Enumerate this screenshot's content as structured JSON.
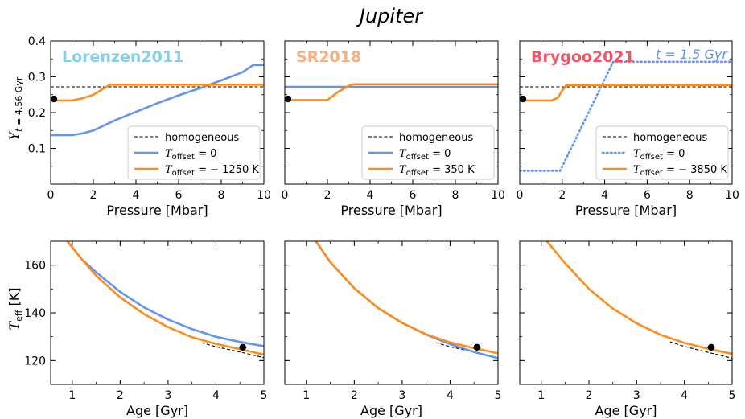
{
  "figure_title": "Jupiter",
  "colors": {
    "blue": "#6495ED",
    "orange": "#FF8C1A",
    "black": "#000000",
    "lorenzen": "#87CEEB",
    "sr": "#F4B183",
    "brygoo": "#F0566A"
  },
  "chart_data": [
    {
      "id": "p1",
      "type": "line",
      "label": "Lorenzen2011",
      "label_color": "#87CEEB",
      "xlabel": "Pressure [Mbar]",
      "ylabel": "Y_t=4.56 Gyr",
      "xlim": [
        0,
        10
      ],
      "ylim": [
        0.0,
        0.4
      ],
      "xticks": [
        0,
        2,
        4,
        6,
        8,
        10
      ],
      "yticks": [
        0.1,
        0.2,
        0.3,
        0.4
      ],
      "xtick_labels": [
        "0",
        "2",
        "4",
        "6",
        "8",
        "10"
      ],
      "ytick_labels": [
        "0.1",
        "0.2",
        "0.3",
        "0.4"
      ],
      "legend": {
        "position": "lower-right",
        "entries": [
          {
            "label": "homogeneous",
            "style": "dashed-black"
          },
          {
            "label": "T_offset = 0",
            "style": "solid-blue"
          },
          {
            "label": "T_offset = − 1250 K",
            "style": "solid-orange"
          }
        ]
      },
      "series": [
        {
          "name": "homogeneous",
          "style": "dashed-black",
          "x": [
            0,
            10
          ],
          "y": [
            0.272,
            0.272
          ]
        },
        {
          "name": "T_offset = 0",
          "style": "solid-blue",
          "x": [
            0,
            1,
            1.5,
            2,
            3,
            4,
            5,
            6,
            7,
            8,
            9,
            9.5,
            10
          ],
          "y": [
            0.137,
            0.137,
            0.142,
            0.15,
            0.178,
            0.202,
            0.226,
            0.248,
            0.268,
            0.29,
            0.313,
            0.333,
            0.333
          ]
        },
        {
          "name": "T_offset = -1250 K",
          "style": "solid-orange",
          "x": [
            0,
            1,
            1.5,
            2,
            2.5,
            2.8,
            3,
            10
          ],
          "y": [
            0.234,
            0.234,
            0.24,
            0.25,
            0.268,
            0.278,
            0.278,
            0.278
          ]
        },
        {
          "name": "observation",
          "style": "point",
          "x": [
            0.15
          ],
          "y": [
            0.238
          ]
        }
      ]
    },
    {
      "id": "p2",
      "type": "line",
      "label": "SR2018",
      "label_color": "#F4B183",
      "xlabel": "Pressure [Mbar]",
      "ylabel": "",
      "xlim": [
        0,
        10
      ],
      "ylim": [
        0.0,
        0.4
      ],
      "xticks": [
        0,
        2,
        4,
        6,
        8,
        10
      ],
      "yticks": [
        0.1,
        0.2,
        0.3,
        0.4
      ],
      "xtick_labels": [
        "0",
        "2",
        "4",
        "6",
        "8",
        "10"
      ],
      "ytick_labels": [],
      "legend": {
        "position": "lower-right",
        "entries": [
          {
            "label": "homogeneous",
            "style": "dashed-black"
          },
          {
            "label": "T_offset = 0",
            "style": "solid-blue"
          },
          {
            "label": "T_offset = 350 K",
            "style": "solid-orange"
          }
        ]
      },
      "series": [
        {
          "name": "homogeneous",
          "style": "dashed-black",
          "x": [
            0,
            10
          ],
          "y": [
            0.272,
            0.272
          ]
        },
        {
          "name": "T_offset = 0",
          "style": "solid-blue",
          "x": [
            0,
            10
          ],
          "y": [
            0.272,
            0.272
          ]
        },
        {
          "name": "T_offset = 350 K",
          "style": "solid-orange",
          "x": [
            0,
            2,
            2.5,
            3,
            3.2,
            10
          ],
          "y": [
            0.235,
            0.235,
            0.258,
            0.275,
            0.279,
            0.279
          ]
        },
        {
          "name": "observation",
          "style": "point",
          "x": [
            0.15
          ],
          "y": [
            0.238
          ]
        }
      ]
    },
    {
      "id": "p3",
      "type": "line",
      "label": "Brygoo2021",
      "label_color": "#F0566A",
      "xlabel": "Pressure [Mbar]",
      "ylabel": "",
      "xlim": [
        0,
        10
      ],
      "ylim": [
        0.0,
        0.4
      ],
      "xticks": [
        0,
        2,
        4,
        6,
        8,
        10
      ],
      "yticks": [
        0.1,
        0.2,
        0.3,
        0.4
      ],
      "xtick_labels": [
        "0",
        "2",
        "4",
        "6",
        "8",
        "10"
      ],
      "ytick_labels": [],
      "annotation": {
        "text": "t = 1.5 Gyr",
        "color": "#6495ED",
        "position": "top-right"
      },
      "legend": {
        "position": "lower-right",
        "entries": [
          {
            "label": "homogeneous",
            "style": "dashed-black"
          },
          {
            "label": "T_offset = 0",
            "style": "dotted-blue"
          },
          {
            "label": "T_offset = − 3850 K",
            "style": "solid-orange"
          }
        ]
      },
      "series": [
        {
          "name": "homogeneous",
          "style": "dashed-black",
          "x": [
            0,
            10
          ],
          "y": [
            0.272,
            0.272
          ]
        },
        {
          "name": "T_offset = 0 (t = 1.5 Gyr)",
          "style": "dotted-blue",
          "x": [
            0,
            1.9,
            4.4,
            10
          ],
          "y": [
            0.037,
            0.037,
            0.342,
            0.342
          ]
        },
        {
          "name": "T_offset = -3850 K",
          "style": "solid-orange",
          "x": [
            0,
            1.5,
            1.8,
            2.0,
            2.2,
            10
          ],
          "y": [
            0.234,
            0.234,
            0.242,
            0.262,
            0.277,
            0.277
          ]
        },
        {
          "name": "observation",
          "style": "point",
          "x": [
            0.15
          ],
          "y": [
            0.238
          ]
        }
      ]
    },
    {
      "id": "p4",
      "type": "line",
      "xlabel": "Age [Gyr]",
      "ylabel": "T_eff [K]",
      "xlim": [
        0.55,
        5.0
      ],
      "ylim": [
        110,
        170
      ],
      "xticks": [
        1,
        2,
        3,
        4,
        5
      ],
      "yticks": [
        120,
        140,
        160
      ],
      "xtick_labels": [
        "1",
        "2",
        "3",
        "4",
        "5"
      ],
      "ytick_labels": [
        "120",
        "140",
        "160"
      ],
      "series": [
        {
          "name": "homogeneous",
          "style": "dashed-black",
          "x": [
            3.7,
            4.0,
            4.5,
            5.0
          ],
          "y": [
            127.5,
            125.8,
            123.6,
            121.2
          ]
        },
        {
          "name": "T_offset = 0",
          "style": "solid-blue",
          "x": [
            0.9,
            1.2,
            1.5,
            2.0,
            2.5,
            3.0,
            3.5,
            4.0,
            4.5,
            5.0
          ],
          "y": [
            170,
            162.5,
            157,
            148.8,
            142.3,
            137.2,
            133.2,
            130.0,
            127.8,
            126.0
          ]
        },
        {
          "name": "T_offset = -1250 K",
          "style": "solid-orange",
          "x": [
            0.9,
            1.2,
            1.5,
            2.0,
            2.5,
            3.0,
            3.5,
            4.0,
            4.5,
            5.0
          ],
          "y": [
            170,
            162.5,
            155.5,
            146.5,
            139.5,
            134.0,
            129.8,
            127.0,
            124.8,
            122.5
          ]
        },
        {
          "name": "observation",
          "style": "errorbar",
          "x": [
            4.56
          ],
          "y": [
            125.57
          ],
          "xerr": [
            0.08
          ],
          "yerr": [
            0.5
          ]
        }
      ]
    },
    {
      "id": "p5",
      "type": "line",
      "xlabel": "Age [Gyr]",
      "ylabel": "",
      "xlim": [
        0.55,
        5.0
      ],
      "ylim": [
        110,
        170
      ],
      "xticks": [
        1,
        2,
        3,
        4,
        5
      ],
      "yticks": [
        120,
        140,
        160
      ],
      "xtick_labels": [
        "1",
        "2",
        "3",
        "4",
        "5"
      ],
      "ytick_labels": [],
      "series": [
        {
          "name": "homogeneous",
          "style": "dashed-black",
          "x": [
            3.7,
            4.0,
            4.5,
            5.0
          ],
          "y": [
            127.5,
            125.8,
            123.6,
            121.2
          ]
        },
        {
          "name": "T_offset = 0",
          "style": "solid-blue",
          "x": [
            1.2,
            1.5,
            2.0,
            2.5,
            3.0,
            3.5,
            4.0,
            4.5,
            5.0
          ],
          "y": [
            170,
            161.2,
            150.3,
            142.0,
            135.8,
            130.9,
            126.9,
            123.6,
            121.0
          ]
        },
        {
          "name": "T_offset = 350 K",
          "style": "solid-orange",
          "x": [
            1.2,
            1.5,
            2.0,
            2.5,
            3.0,
            3.5,
            4.0,
            4.5,
            5.0
          ],
          "y": [
            170,
            161.2,
            150.3,
            142.0,
            135.8,
            131.0,
            127.6,
            125.2,
            123.0
          ]
        },
        {
          "name": "observation",
          "style": "errorbar",
          "x": [
            4.56
          ],
          "y": [
            125.57
          ],
          "xerr": [
            0.08
          ],
          "yerr": [
            0.5
          ]
        }
      ]
    },
    {
      "id": "p6",
      "type": "line",
      "xlabel": "Age [Gyr]",
      "ylabel": "",
      "xlim": [
        0.55,
        5.0
      ],
      "ylim": [
        110,
        170
      ],
      "xticks": [
        1,
        2,
        3,
        4,
        5
      ],
      "yticks": [
        120,
        140,
        160
      ],
      "xtick_labels": [
        "1",
        "2",
        "3",
        "4",
        "5"
      ],
      "ytick_labels": [],
      "series": [
        {
          "name": "homogeneous",
          "style": "dashed-black",
          "x": [
            3.7,
            4.0,
            4.5,
            5.0
          ],
          "y": [
            127.8,
            125.9,
            123.4,
            121.0
          ]
        },
        {
          "name": "T_offset = -3850 K",
          "style": "solid-orange",
          "x": [
            1.12,
            1.5,
            2.0,
            2.5,
            3.0,
            3.5,
            4.0,
            4.5,
            5.0
          ],
          "y": [
            170,
            160.8,
            150.0,
            141.8,
            135.6,
            130.8,
            127.4,
            124.9,
            122.8
          ]
        },
        {
          "name": "observation",
          "style": "errorbar",
          "x": [
            4.56
          ],
          "y": [
            125.57
          ],
          "xerr": [
            0.08
          ],
          "yerr": [
            0.5
          ]
        }
      ]
    }
  ]
}
